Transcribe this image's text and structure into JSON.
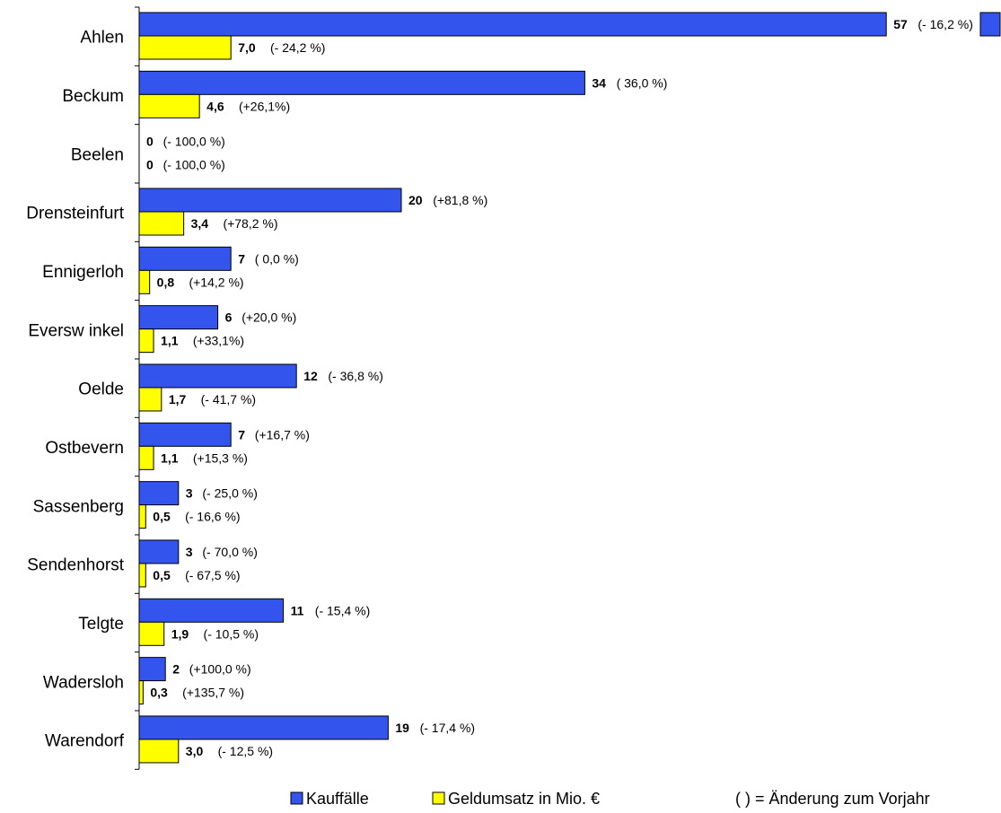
{
  "chart_data": {
    "type": "bar",
    "orientation": "horizontal",
    "title": "",
    "xlabel": "",
    "ylabel": "",
    "xlim": [
      0,
      58
    ],
    "grid": false,
    "categories": [
      "Ahlen",
      "Beckum",
      "Beelen",
      "Drensteinfurt",
      "Ennigerloh",
      "Eversw inkel",
      "Oelde",
      "Ostbevern",
      "Sassenberg",
      "Sendenhorst",
      "Telgte",
      "Wadersloh",
      "Warendorf"
    ],
    "series": [
      {
        "name": "Kauffälle",
        "color": "#3355ee",
        "values": [
          57,
          34,
          0,
          20,
          7,
          6,
          12,
          7,
          3,
          3,
          11,
          2,
          19
        ],
        "value_labels": [
          "57",
          "34",
          "0",
          "20",
          "7",
          "6",
          "12",
          "7",
          "3",
          "3",
          "11",
          "2",
          "19"
        ],
        "change_labels": [
          "(- 16,2 %)",
          "( 36,0 %)",
          "(- 100,0 %)",
          "(+81,8 %)",
          "( 0,0 %)",
          "(+20,0 %)",
          "(- 36,8 %)",
          "(+16,7 %)",
          "(- 25,0 %)",
          "(- 70,0 %)",
          "(- 15,4 %)",
          "(+100,0 %)",
          "(- 17,4 %)"
        ]
      },
      {
        "name": "Geldumsatz in Mio. €",
        "color": "#ffff00",
        "values": [
          7.0,
          4.6,
          0,
          3.4,
          0.8,
          1.1,
          1.7,
          1.1,
          0.5,
          0.5,
          1.9,
          0.3,
          3.0
        ],
        "value_labels": [
          "7,0",
          "4,6",
          "0",
          "3,4",
          "0,8",
          "1,1",
          "1,7",
          "1,1",
          "0,5",
          "0,5",
          "1,9",
          "0,3",
          "3,0"
        ],
        "change_labels": [
          "(- 24,2 %)",
          "(+26,1%)",
          "(- 100,0 %)",
          "(+78,2 %)",
          "(+14,2 %)",
          "(+33,1%)",
          "(- 41,7 %)",
          "(+15,3 %)",
          "(- 16,6 %)",
          "(- 67,5 %)",
          "(- 10,5 %)",
          "(+135,7 %)",
          "(- 12,5 %)"
        ]
      }
    ],
    "legend": {
      "placement": "bottom",
      "items": [
        "Kauffälle",
        "Geldumsatz in Mio. €"
      ],
      "note": "( ) = Änderung zum Vorjahr"
    }
  }
}
